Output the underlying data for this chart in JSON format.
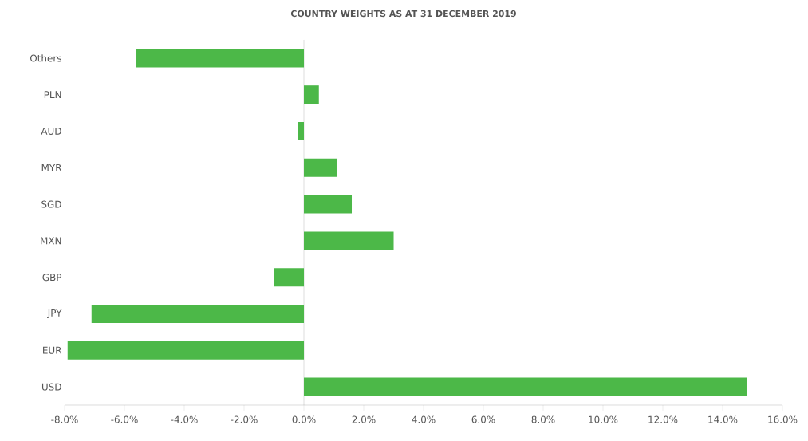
{
  "chart_data": {
    "type": "bar",
    "orientation": "horizontal",
    "title": "COUNTRY WEIGHTS AS AT 31 DECEMBER 2019",
    "categories": [
      "Others",
      "PLN",
      "AUD",
      "MYR",
      "SGD",
      "MXN",
      "GBP",
      "JPY",
      "EUR",
      "USD"
    ],
    "values": [
      -5.6,
      0.5,
      -0.2,
      1.1,
      1.6,
      3.0,
      -1.0,
      -7.1,
      -7.9,
      14.8
    ],
    "color": "#4cb848",
    "xlim": [
      -8,
      16
    ],
    "xticks": [
      {
        "value": -8,
        "label": "-8.0%"
      },
      {
        "value": -6,
        "label": "-6.0%"
      },
      {
        "value": -4,
        "label": "-4.0%"
      },
      {
        "value": -2,
        "label": "-2.0%"
      },
      {
        "value": 0,
        "label": "0.0%"
      },
      {
        "value": 2,
        "label": "2.0%"
      },
      {
        "value": 4,
        "label": "4.0%"
      },
      {
        "value": 6,
        "label": "6.0%"
      },
      {
        "value": 8,
        "label": "8.0%"
      },
      {
        "value": 10,
        "label": "10.0%"
      },
      {
        "value": 12,
        "label": "12.0%"
      },
      {
        "value": 14,
        "label": "14.0%"
      },
      {
        "value": 16,
        "label": "16.0%"
      }
    ]
  }
}
